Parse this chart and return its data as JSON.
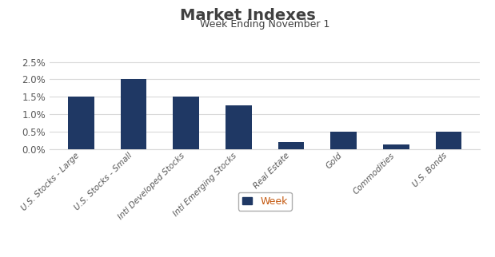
{
  "title": "Market Indexes",
  "subtitle": "Week Ending November 1",
  "categories": [
    "U.S. Stocks - Large",
    "U.S. Stocks - Small",
    "Intl Developed Stocks",
    "Intl Emerging Stocks",
    "Real Estate",
    "Gold",
    "Commodities",
    "U.S. Bonds"
  ],
  "values": [
    0.015,
    0.02,
    0.015,
    0.0125,
    0.002,
    0.005,
    0.00125,
    0.005
  ],
  "bar_color": "#1F3864",
  "ylim": [
    0,
    0.028
  ],
  "yticks": [
    0.0,
    0.005,
    0.01,
    0.015,
    0.02,
    0.025
  ],
  "ytick_labels": [
    "0.0%",
    "0.5%",
    "1.0%",
    "1.5%",
    "2.0%",
    "2.5%"
  ],
  "legend_label": "Week",
  "legend_text_color": "#C55A11",
  "background_color": "#FFFFFF",
  "title_fontsize": 14,
  "subtitle_fontsize": 9,
  "title_color": "#404040",
  "subtitle_color": "#404040",
  "tick_color": "#595959",
  "grid_color": "#D9D9D9"
}
